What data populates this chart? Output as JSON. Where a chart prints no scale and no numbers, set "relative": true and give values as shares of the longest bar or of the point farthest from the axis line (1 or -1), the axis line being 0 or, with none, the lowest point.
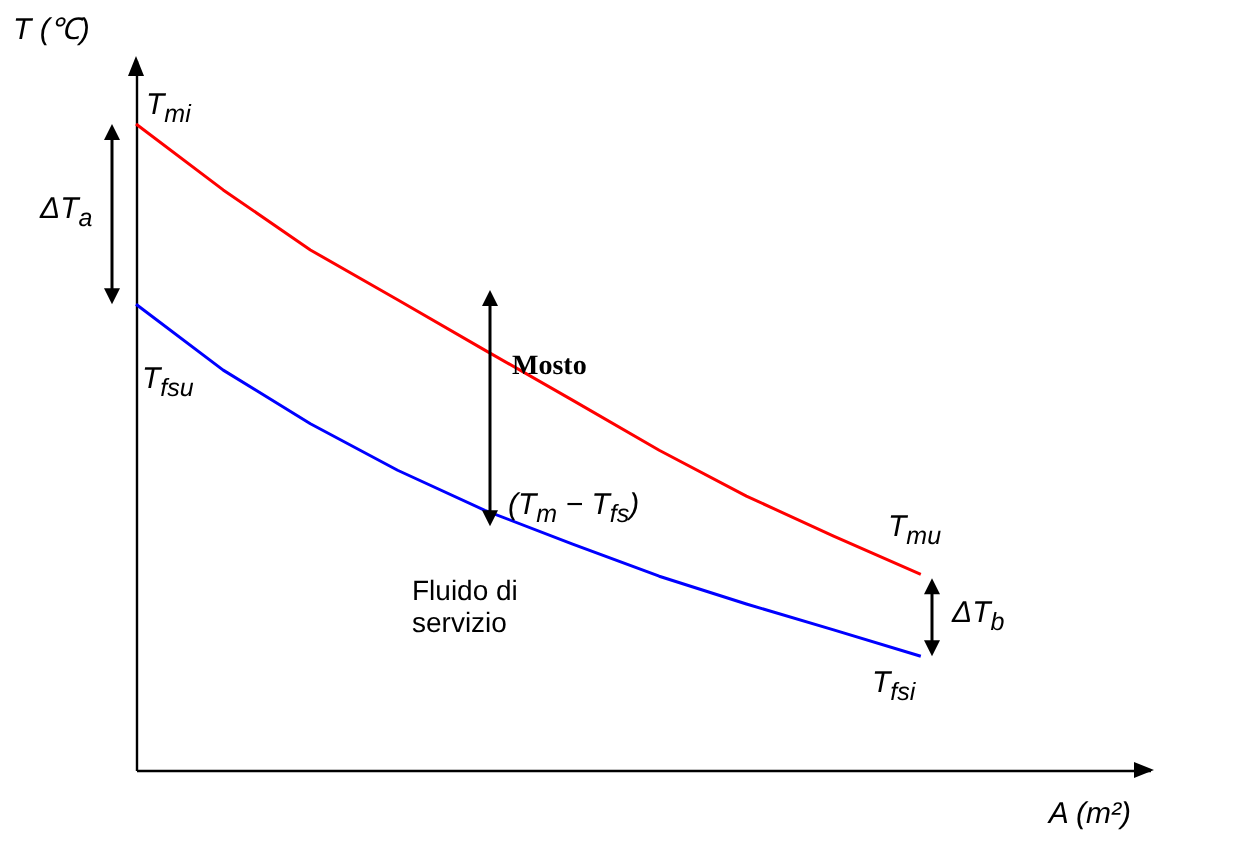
{
  "chart_data": {
    "type": "line",
    "relative": true,
    "xlabel": "A (m²)",
    "ylabel": "T (℃)",
    "categories": [
      null,
      null,
      null,
      null,
      null,
      null,
      null,
      null,
      null,
      null,
      null,
      null
    ],
    "series": [
      {
        "name": "Mosto",
        "color": "#ff0000",
        "values": [
          1,
          0.898,
          0.805,
          0.728,
          0.65,
          0.573,
          0.495,
          0.424,
          0.362,
          0.303,
          null,
          null
        ]
      },
      {
        "name": "Fluido di servizio",
        "color": "#0000ff",
        "values": [
          0.721,
          0.619,
          0.536,
          0.464,
          0.402,
          0.35,
          0.3,
          0.257,
          0.217,
          0.176,
          null,
          null
        ]
      }
    ],
    "annotations": [
      "T$_{mi}$",
      "ΔT$_{a}$",
      "T$_{fsu}$",
      "(T$_{m}$ − T$_{fs}$)",
      "T$_{mu}$",
      "ΔT$_{b}$",
      "T$_{fsi}$"
    ],
    "legend": false,
    "grid": false,
    "tick_labels": false,
    "marker": "none",
    "line_style": "solid"
  }
}
